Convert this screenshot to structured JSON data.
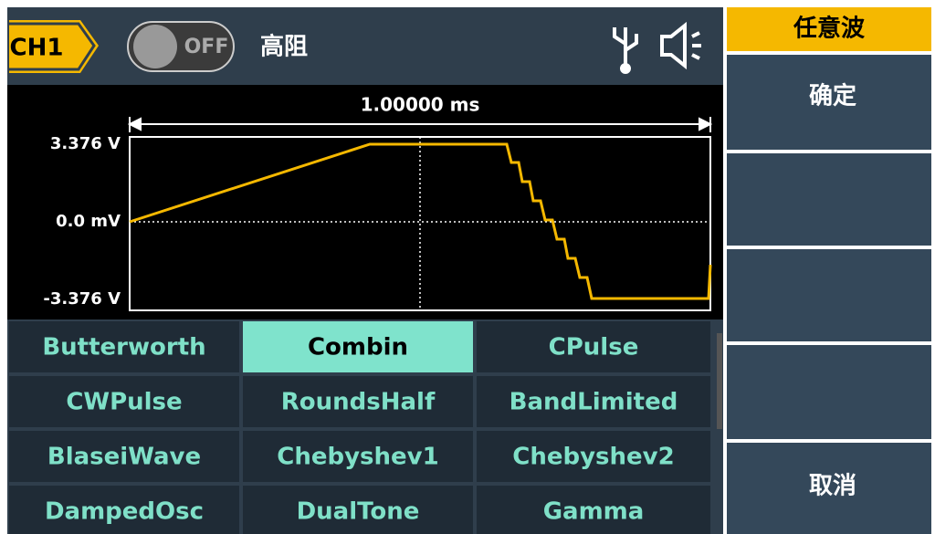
{
  "header": {
    "channel": "CH1",
    "toggle": "OFF",
    "mode": "高阻"
  },
  "preview": {
    "period": "1.00000 ms",
    "max_label": "3.376 V",
    "mid_label": "0.0 mV",
    "min_label": "-3.376 V"
  },
  "waveforms": [
    [
      "Butterworth",
      "Combin",
      "CPulse"
    ],
    [
      "CWPulse",
      "RoundsHalf",
      "BandLimited"
    ],
    [
      "BlaseiWave",
      "Chebyshev1",
      "Chebyshev2"
    ],
    [
      "DampedOsc",
      "DualTone",
      "Gamma"
    ]
  ],
  "selected": "Combin",
  "menu": {
    "title": "任意波",
    "confirm": "确定",
    "cancel": "取消"
  }
}
